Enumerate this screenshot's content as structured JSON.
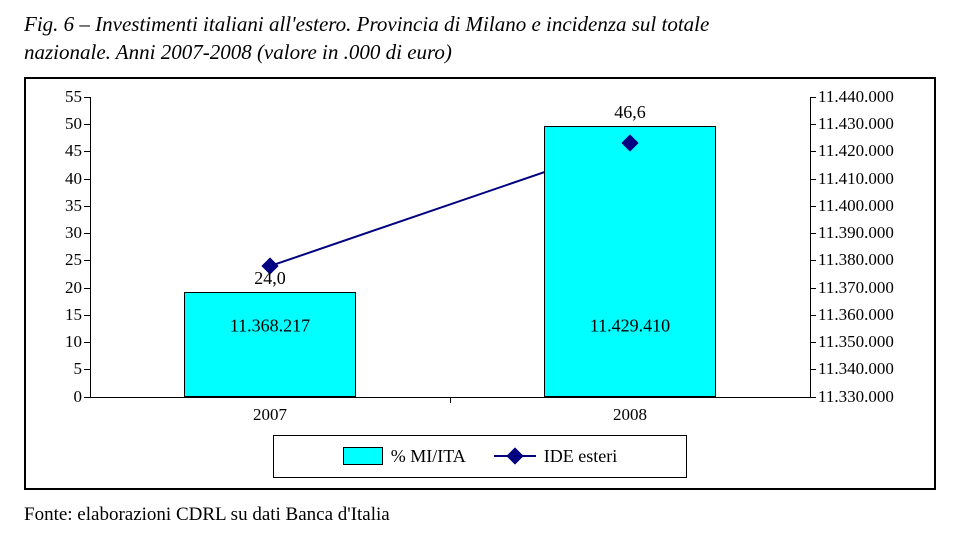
{
  "title_line1": "Fig. 6 – Investimenti italiani all'estero. Provincia di Milano e incidenza sul totale",
  "title_line2": "nazionale. Anni 2007-2008 (valore in .000 di euro)",
  "source": "Fonte: elaborazioni CDRL su dati Banca d'Italia",
  "chart": {
    "type": "bar+line-dual-axis",
    "categories": [
      "2007",
      "2008"
    ],
    "left_axis": {
      "min": 0,
      "max": 55,
      "step": 5,
      "fontsize": 17
    },
    "right_axis": {
      "min": 11330000,
      "max": 11440000,
      "step": 10000,
      "fontsize": 17,
      "labels": [
        "11.330.000",
        "11.340.000",
        "11.350.000",
        "11.360.000",
        "11.370.000",
        "11.380.000",
        "11.390.000",
        "11.400.000",
        "11.410.000",
        "11.420.000",
        "11.430.000",
        "11.440.000"
      ]
    },
    "bars": {
      "values_right_axis": [
        11368217,
        11429410
      ],
      "labels": [
        "11.368.217",
        "11.429.410"
      ],
      "color": "#00ffff",
      "border_color": "#000000",
      "width_ratio": 0.48
    },
    "line": {
      "values_left_axis": [
        24.0,
        46.6
      ],
      "labels": [
        "24,0",
        "46,6"
      ],
      "color": "#000080",
      "marker_color": "#000080",
      "line_width": 2
    },
    "background_color": "#ffffff",
    "axis_color": "#000000"
  },
  "legend": {
    "bar_label": "% MI/ITA",
    "line_label": "IDE esteri",
    "bar_color": "#00ffff",
    "line_color": "#000080"
  }
}
